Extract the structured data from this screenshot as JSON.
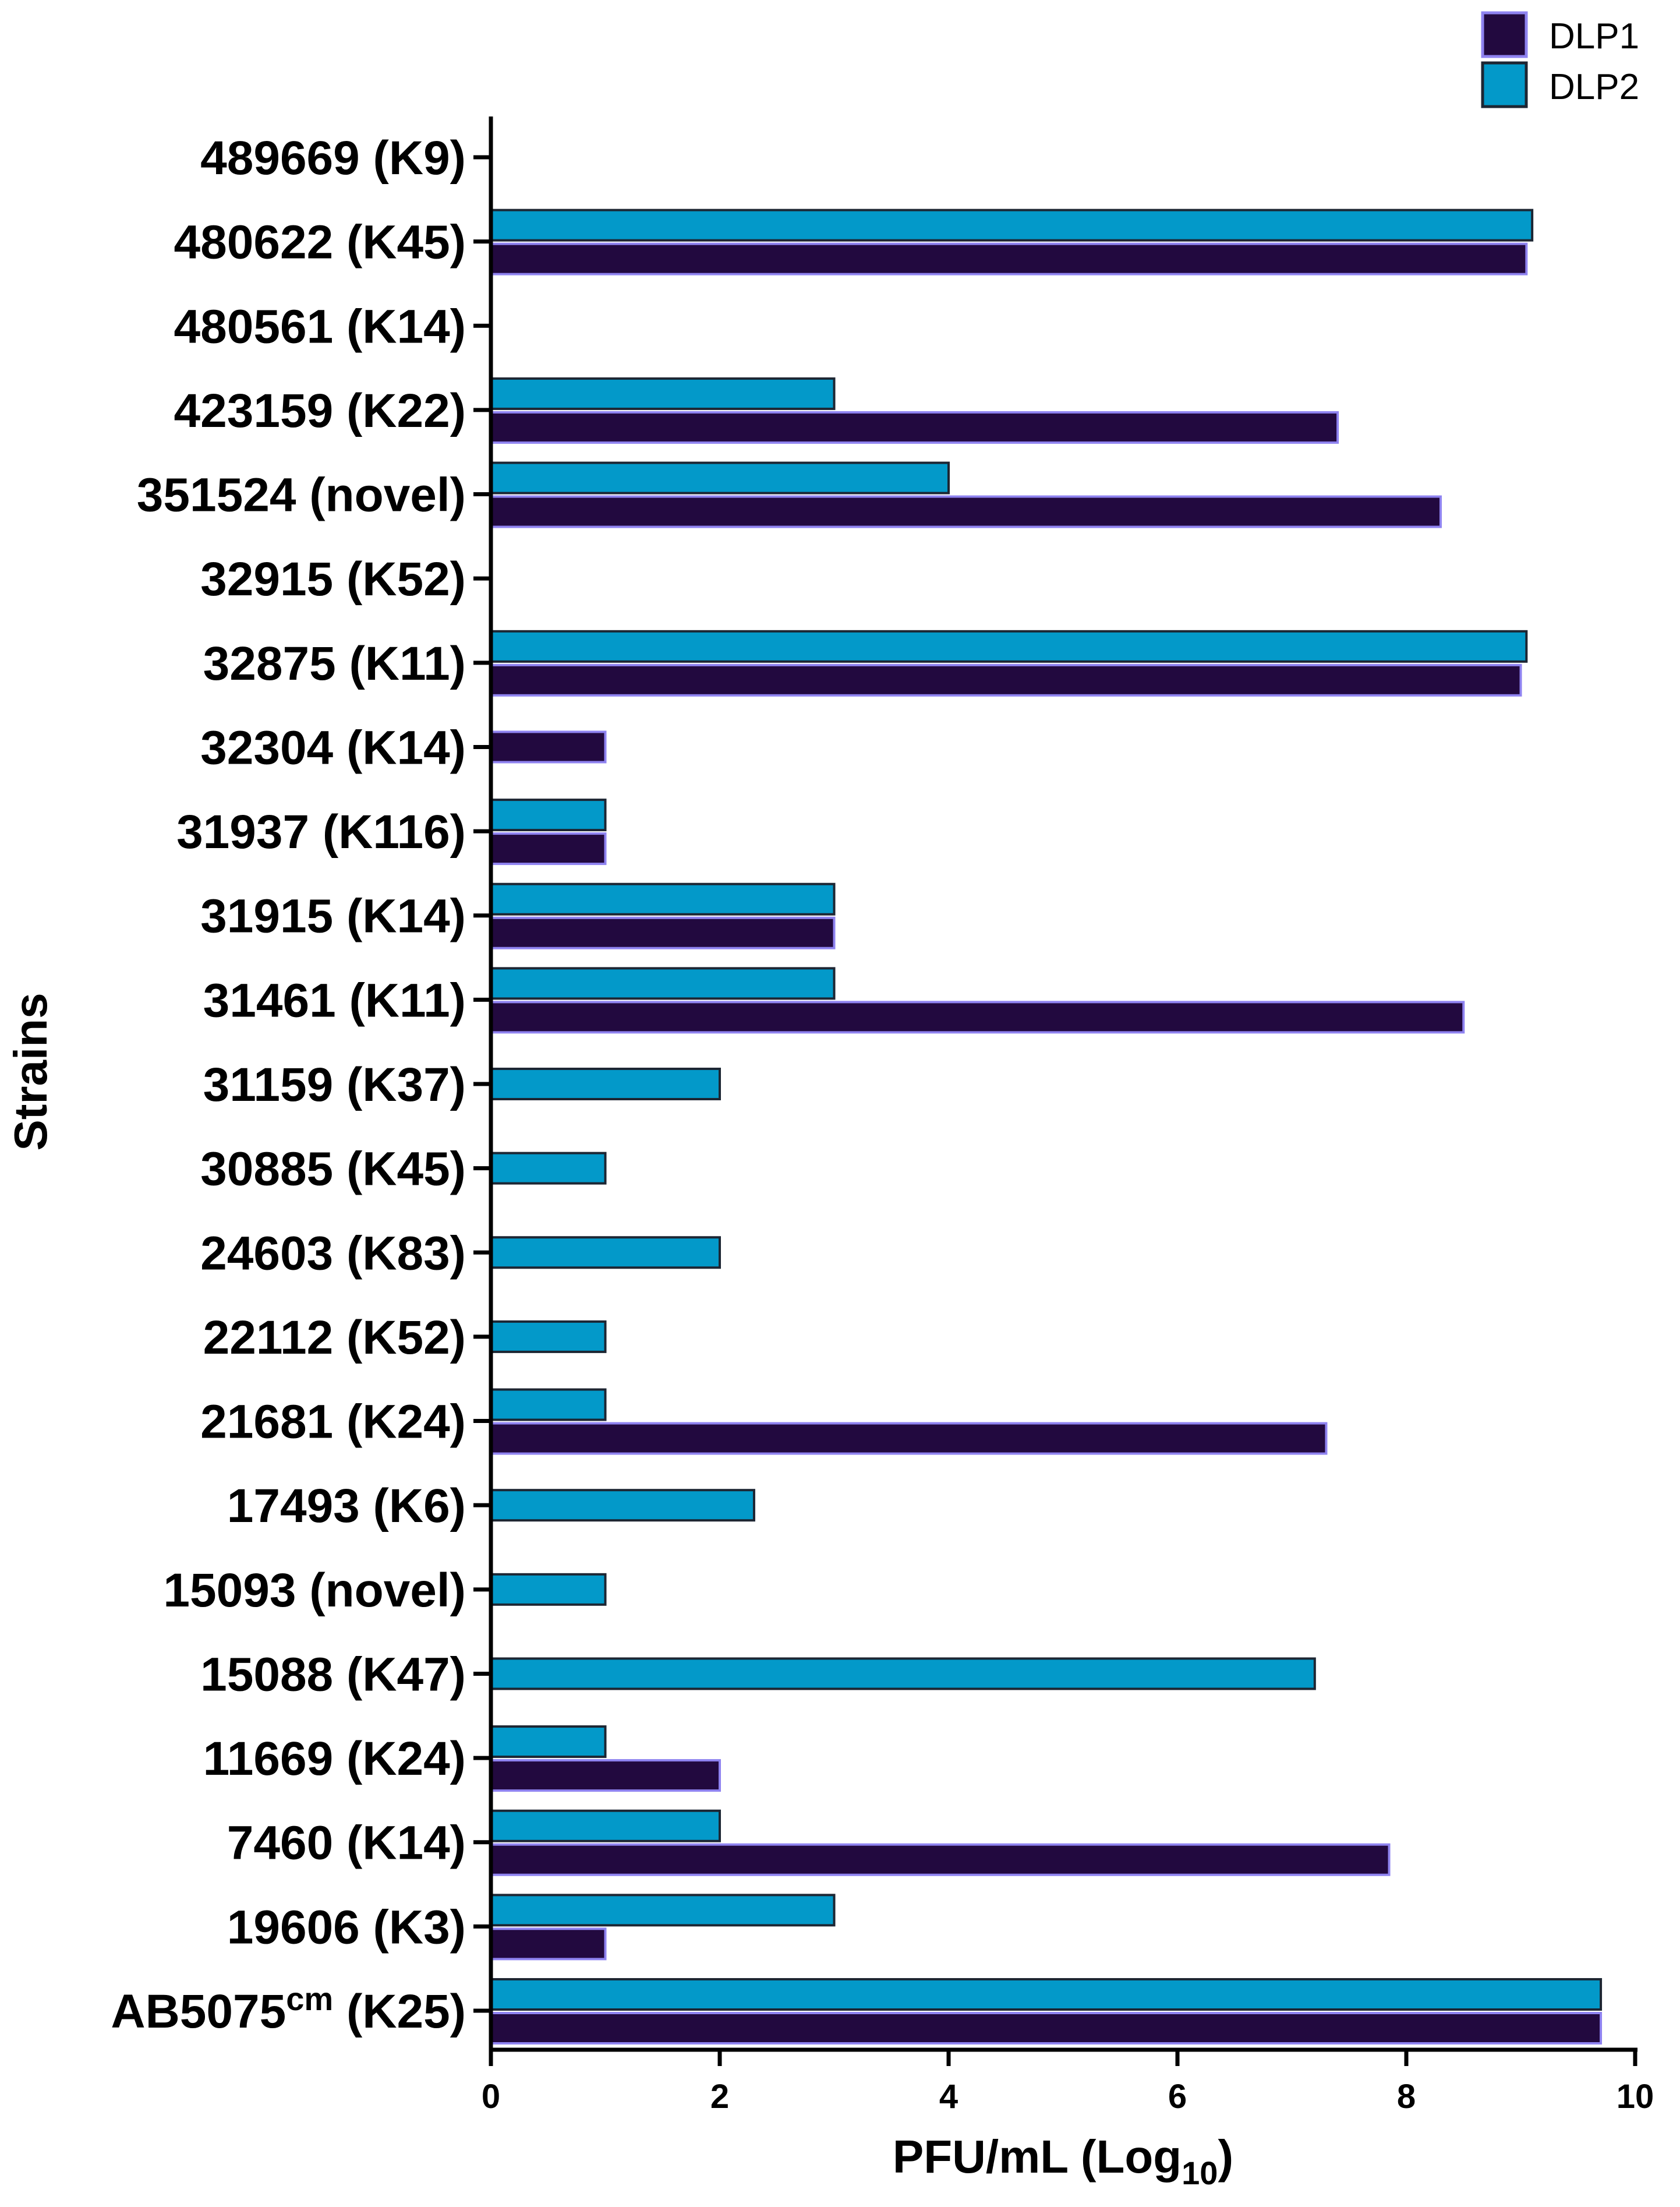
{
  "chart_data": {
    "type": "bar",
    "orientation": "horizontal",
    "title": "",
    "xlabel": "PFU/mL (Log",
    "xlabel_sub": "10",
    "xlabel_close": ")",
    "ylabel": "Strains",
    "xlim": [
      0,
      10
    ],
    "xticks": [
      0,
      2,
      4,
      6,
      8,
      10
    ],
    "grid": false,
    "legend_position": "top-right",
    "colors": {
      "DLP1": "#22093f",
      "DLP2": "#0399c9",
      "DLP1_edge": "#8f83f0",
      "DLP2_edge": "#1d2633"
    },
    "categories": [
      "489669 (K9)",
      "480622 (K45)",
      "480561 (K14)",
      "423159 (K22)",
      "351524 (novel)",
      "32915 (K52)",
      "32875 (K11)",
      "32304 (K14)",
      "31937 (K116)",
      "31915 (K14)",
      "31461 (K11)",
      "31159 (K37)",
      "30885 (K45)",
      "24603 (K83)",
      "22112 (K52)",
      "21681 (K24)",
      "17493 (K6)",
      "15093 (novel)",
      "15088 (K47)",
      "11669 (K24)",
      "7460 (K14)",
      "19606 (K3)",
      "AB5075cm (K25)"
    ],
    "category_parts": [
      {
        "main": "489669 (K9)"
      },
      {
        "main": "480622 (K45)"
      },
      {
        "main": "480561 (K14)"
      },
      {
        "main": "423159 (K22)"
      },
      {
        "main": "351524 (novel)"
      },
      {
        "main": "32915 (K52)"
      },
      {
        "main": "32875 (K11)"
      },
      {
        "main": "32304 (K14)"
      },
      {
        "main": "31937 (K116)"
      },
      {
        "main": "31915 (K14)"
      },
      {
        "main": "31461 (K11)"
      },
      {
        "main": "31159 (K37)"
      },
      {
        "main": "30885 (K45)"
      },
      {
        "main": "24603 (K83)"
      },
      {
        "main": "22112 (K52)"
      },
      {
        "main": "21681 (K24)"
      },
      {
        "main": "17493 (K6)"
      },
      {
        "main": "15093 (novel)"
      },
      {
        "main": "15088 (K47)"
      },
      {
        "main": "11669 (K24)"
      },
      {
        "main": "7460 (K14)"
      },
      {
        "main": "19606 (K3)"
      },
      {
        "main": "AB5075",
        "sup": "cm",
        "rest": " (K25)"
      }
    ],
    "series": [
      {
        "name": "DLP1",
        "values": [
          null,
          9.05,
          null,
          7.4,
          8.3,
          null,
          9.0,
          1.0,
          1.0,
          3.0,
          8.5,
          null,
          null,
          null,
          null,
          7.3,
          null,
          null,
          null,
          2.0,
          7.85,
          1.0,
          9.7
        ]
      },
      {
        "name": "DLP2",
        "values": [
          null,
          9.1,
          null,
          3.0,
          4.0,
          null,
          9.05,
          null,
          1.0,
          3.0,
          3.0,
          2.0,
          1.0,
          2.0,
          1.0,
          1.0,
          2.3,
          1.0,
          7.2,
          1.0,
          2.0,
          3.0,
          9.7
        ]
      }
    ]
  }
}
